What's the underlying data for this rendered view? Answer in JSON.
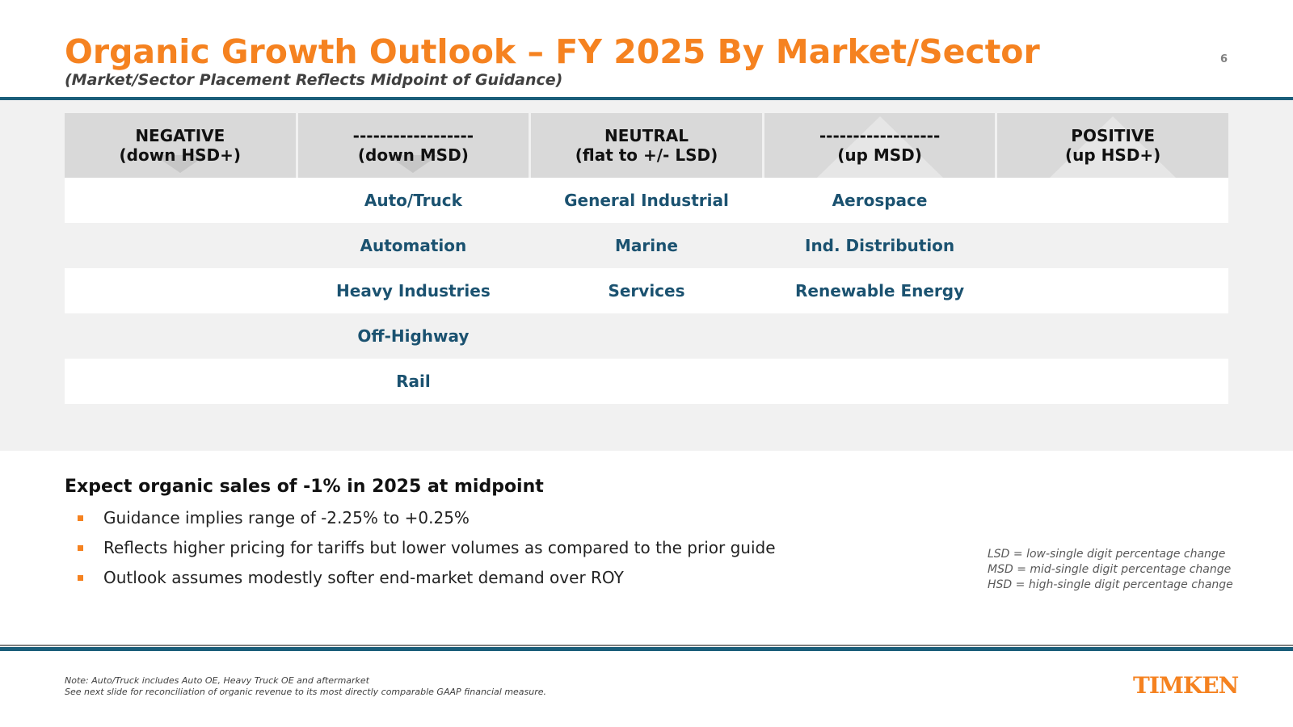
{
  "slide": {
    "title": "Organic Growth Outlook – FY 2025 By Market/Sector",
    "subtitle": "(Market/Sector Placement Reflects Midpoint of Guidance)",
    "page_number": "6"
  },
  "table": {
    "headers": [
      {
        "line1": "NEGATIVE",
        "line2": "(down HSD+)"
      },
      {
        "line1": "------------------",
        "line2": "(down MSD)"
      },
      {
        "line1": "NEUTRAL",
        "line2": "(flat to +/- LSD)"
      },
      {
        "line1": "------------------",
        "line2": "(up MSD)"
      },
      {
        "line1": "POSITIVE",
        "line2": "(up HSD+)"
      }
    ],
    "rows": [
      [
        "",
        "Auto/Truck",
        "General Industrial",
        "Aerospace",
        ""
      ],
      [
        "",
        "Automation",
        "Marine",
        "Ind. Distribution",
        ""
      ],
      [
        "",
        "Heavy Industries",
        "Services",
        "Renewable Energy",
        ""
      ],
      [
        "",
        "Off-Highway",
        "",
        "",
        ""
      ],
      [
        "",
        "Rail",
        "",
        "",
        ""
      ]
    ]
  },
  "summary": {
    "headline": "Expect organic sales of -1% in 2025 at midpoint",
    "bullets": [
      "Guidance implies range of -2.25% to +0.25%",
      "Reflects higher pricing for tariffs but lower volumes as compared to the prior guide",
      "Outlook assumes modestly softer end-market demand over ROY"
    ]
  },
  "legend": [
    "LSD = low-single digit percentage change",
    "MSD = mid-single digit percentage change",
    "HSD = high-single digit percentage change"
  ],
  "footer": {
    "note_line1": "Note: Auto/Truck includes Auto OE, Heavy Truck OE and aftermarket",
    "note_line2": "See next slide for reconciliation of organic revenue to its most directly comparable GAAP financial measure.",
    "logo": "TIMKEN"
  },
  "colors": {
    "accent": "#F58220",
    "brand_blue": "#1B5E7A",
    "cell_text": "#1B5270"
  }
}
